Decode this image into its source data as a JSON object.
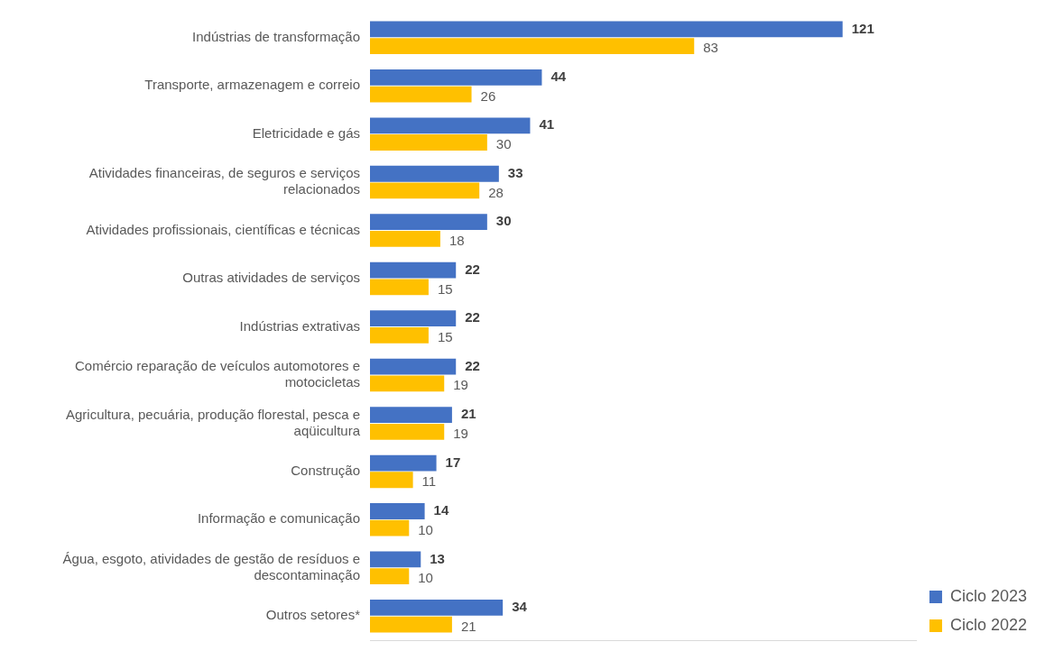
{
  "chart_data": {
    "type": "bar",
    "orientation": "horizontal",
    "categories": [
      "Indústrias de transformação",
      "Transporte, armazenagem e correio",
      "Eletricidade e gás",
      "Atividades financeiras, de seguros e serviços relacionados",
      "Atividades profissionais, científicas e técnicas",
      "Outras atividades de serviços",
      "Indústrias extrativas",
      "Comércio reparação de veículos automotores e motocicletas",
      "Agricultura, pecuária, produção florestal, pesca e aqüicultura",
      "Construção",
      "Informação e comunicação",
      "Água, esgoto, atividades de gestão de resíduos e descontaminação",
      "Outros setores*"
    ],
    "series": [
      {
        "name": "Ciclo 2023",
        "color": "#4472c4",
        "values": [
          121,
          44,
          41,
          33,
          30,
          22,
          22,
          22,
          21,
          17,
          14,
          13,
          34
        ]
      },
      {
        "name": "Ciclo 2022",
        "color": "#ffc000",
        "values": [
          83,
          26,
          30,
          28,
          18,
          15,
          15,
          19,
          19,
          11,
          10,
          10,
          21
        ]
      }
    ],
    "data_labels": true,
    "grid": false,
    "legend": "bottom right"
  }
}
